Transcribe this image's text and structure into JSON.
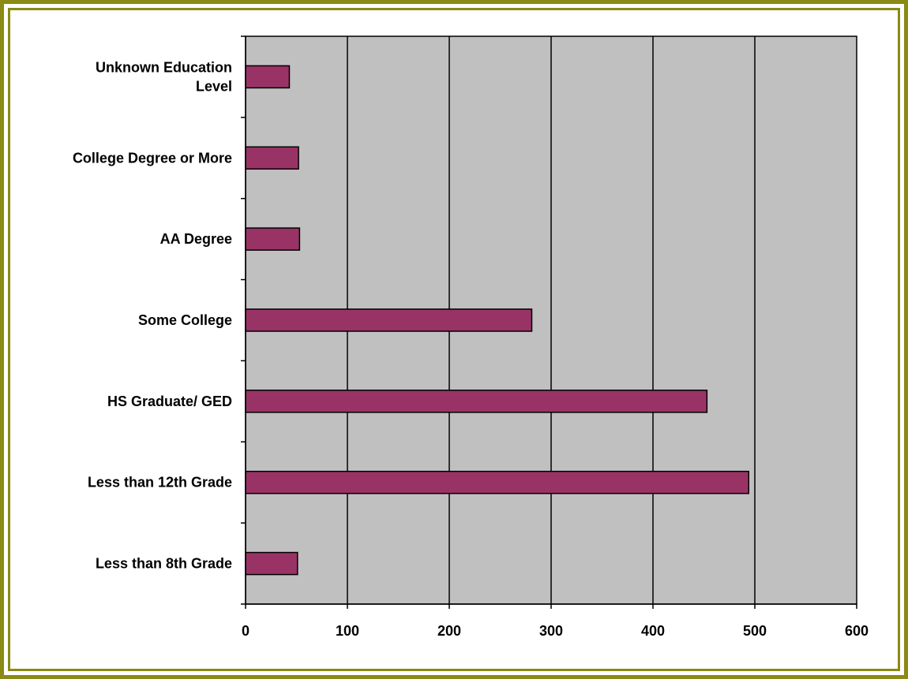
{
  "chart_data": {
    "type": "bar",
    "orientation": "horizontal",
    "categories": [
      "Less than 8th Grade",
      "Less than 12th Grade",
      "HS Graduate/ GED",
      "Some College",
      "AA Degree",
      "College Degree or More",
      "Unknown Education Level"
    ],
    "category_lines": [
      [
        "Less than 8th Grade"
      ],
      [
        "Less than 12th Grade"
      ],
      [
        "HS Graduate/ GED"
      ],
      [
        "Some College"
      ],
      [
        "AA Degree"
      ],
      [
        "College Degree or More"
      ],
      [
        "Unknown Education",
        "Level"
      ]
    ],
    "values": [
      51,
      494,
      453,
      281,
      53,
      52,
      43
    ],
    "xlim": [
      0,
      600
    ],
    "xticks": [
      "0",
      "100",
      "200",
      "300",
      "400",
      "500",
      "600"
    ],
    "xtick_values": [
      0,
      100,
      200,
      300,
      400,
      500,
      600
    ],
    "grid": "vertical",
    "colors": {
      "bar": "#993366",
      "plot_background": "#c0c0c0",
      "frame": "#8a8a14",
      "grid": "#000000"
    }
  }
}
